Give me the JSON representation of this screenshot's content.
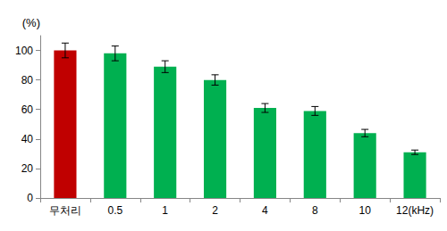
{
  "chart_data": {
    "type": "bar",
    "y_label": "(%)",
    "categories": [
      "무처리",
      "0.5",
      "1",
      "2",
      "4",
      "8",
      "10",
      "12(kHz)"
    ],
    "values": [
      100,
      98,
      89,
      80,
      61,
      59,
      44,
      31
    ],
    "errors": [
      5,
      5,
      4,
      3.5,
      3,
      3,
      2.5,
      1.5
    ],
    "colors": [
      "#c00000",
      "#00b050",
      "#00b050",
      "#00b050",
      "#00b050",
      "#00b050",
      "#00b050",
      "#00b050"
    ],
    "ylim": [
      0,
      110
    ],
    "yticks": [
      0,
      20,
      40,
      60,
      80,
      100
    ],
    "grid": false
  }
}
